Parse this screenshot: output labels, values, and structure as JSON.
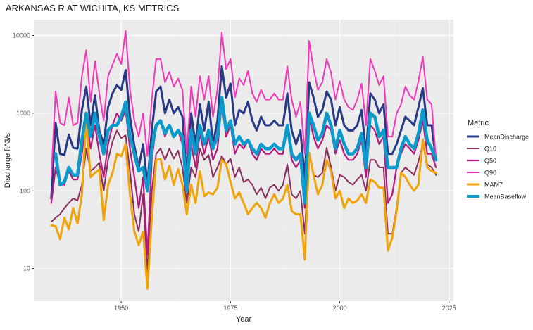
{
  "chart_data": {
    "type": "line",
    "title": "ARKANSAS R AT WICHITA, KS  METRICS",
    "xlabel": "Year",
    "ylabel": "Discharge ft^3/s",
    "y_scale": "log10",
    "xlim": [
      1930,
      2026
    ],
    "ylim": [
      3.8,
      16000
    ],
    "x_ticks": [
      1950,
      1975,
      2000,
      2025
    ],
    "y_ticks": [
      10,
      100,
      1000,
      10000
    ],
    "grid": true,
    "legend_title": "Metric",
    "legend_position": "right",
    "x": [
      1934,
      1935,
      1936,
      1937,
      1938,
      1939,
      1940,
      1941,
      1942,
      1943,
      1944,
      1945,
      1946,
      1947,
      1948,
      1949,
      1950,
      1951,
      1952,
      1953,
      1954,
      1955,
      1956,
      1957,
      1958,
      1959,
      1960,
      1961,
      1962,
      1963,
      1964,
      1965,
      1966,
      1967,
      1968,
      1969,
      1970,
      1971,
      1972,
      1973,
      1974,
      1975,
      1976,
      1977,
      1978,
      1979,
      1980,
      1981,
      1982,
      1983,
      1984,
      1985,
      1986,
      1987,
      1988,
      1989,
      1990,
      1991,
      1992,
      1993,
      1994,
      1995,
      1996,
      1997,
      1998,
      1999,
      2000,
      2001,
      2002,
      2003,
      2004,
      2005,
      2006,
      2007,
      2008,
      2009,
      2010,
      2011,
      2012,
      2013,
      2014,
      2015,
      2016,
      2017,
      2018,
      2019,
      2020,
      2021,
      2022
    ],
    "series": [
      {
        "name": "MeanDischarge",
        "color": "#283a86",
        "width": 3,
        "values": [
          80,
          750,
          300,
          290,
          530,
          360,
          350,
          1100,
          2200,
          700,
          1700,
          600,
          400,
          1200,
          1800,
          2300,
          2000,
          3600,
          900,
          380,
          200,
          400,
          120,
          600,
          1900,
          2200,
          1000,
          1500,
          1000,
          1200,
          900,
          150,
          1000,
          400,
          1300,
          600,
          1400,
          400,
          800,
          4000,
          1600,
          2400,
          700,
          1100,
          1000,
          1400,
          800,
          600,
          900,
          700,
          700,
          800,
          700,
          700,
          1800,
          600,
          400,
          600,
          140,
          2500,
          1600,
          900,
          1100,
          1900,
          1500,
          700,
          1200,
          700,
          600,
          600,
          700,
          1100,
          300,
          1800,
          1500,
          1000,
          1300,
          300,
          300,
          400,
          600,
          900,
          800,
          700,
          1200,
          2100,
          700,
          700,
          250
        ]
      },
      {
        "name": "Q10",
        "color": "#8b2e5f",
        "width": 2,
        "values": [
          40,
          45,
          50,
          60,
          70,
          80,
          75,
          120,
          350,
          180,
          200,
          230,
          100,
          250,
          430,
          600,
          480,
          520,
          180,
          50,
          30,
          90,
          9,
          100,
          300,
          350,
          250,
          350,
          260,
          330,
          200,
          70,
          200,
          150,
          350,
          250,
          290,
          150,
          200,
          280,
          220,
          260,
          150,
          200,
          130,
          140,
          120,
          90,
          110,
          80,
          110,
          120,
          100,
          120,
          220,
          90,
          80,
          100,
          28,
          300,
          160,
          150,
          170,
          360,
          200,
          100,
          160,
          150,
          130,
          120,
          140,
          160,
          100,
          250,
          250,
          200,
          200,
          28,
          28,
          60,
          170,
          200,
          180,
          160,
          240,
          400,
          220,
          200,
          160
        ]
      },
      {
        "name": "Q50",
        "color": "#b5197d",
        "width": 2.2,
        "values": [
          70,
          200,
          120,
          120,
          180,
          140,
          140,
          300,
          900,
          350,
          700,
          300,
          150,
          400,
          700,
          1000,
          800,
          1100,
          350,
          150,
          60,
          150,
          15,
          250,
          700,
          800,
          500,
          700,
          500,
          600,
          400,
          100,
          400,
          200,
          550,
          300,
          500,
          250,
          350,
          1300,
          500,
          700,
          300,
          400,
          350,
          450,
          300,
          250,
          350,
          300,
          300,
          350,
          300,
          300,
          700,
          250,
          200,
          250,
          60,
          900,
          500,
          350,
          450,
          700,
          600,
          300,
          450,
          300,
          250,
          250,
          300,
          450,
          150,
          700,
          600,
          400,
          500,
          70,
          90,
          200,
          300,
          400,
          350,
          300,
          450,
          800,
          300,
          300,
          200
        ]
      },
      {
        "name": "Q90",
        "color": "#f536b8",
        "width": 2,
        "values": [
          150,
          1900,
          750,
          700,
          1600,
          700,
          750,
          3000,
          6500,
          1400,
          4700,
          1800,
          800,
          3000,
          4200,
          5800,
          4300,
          11500,
          2000,
          800,
          500,
          1000,
          280,
          1500,
          5000,
          5000,
          2500,
          3400,
          2200,
          2800,
          2000,
          300,
          2200,
          900,
          3000,
          1500,
          3000,
          900,
          2000,
          11000,
          3700,
          5000,
          1600,
          2800,
          2300,
          3500,
          1800,
          1400,
          2000,
          1500,
          1500,
          1800,
          1500,
          1500,
          4000,
          1500,
          900,
          1400,
          300,
          8500,
          3700,
          2000,
          2500,
          5000,
          3300,
          1500,
          2600,
          1500,
          1200,
          1100,
          1500,
          2400,
          700,
          5000,
          3500,
          2300,
          3000,
          500,
          500,
          1000,
          1300,
          2200,
          1700,
          1500,
          2600,
          5300,
          1500,
          1300,
          250
        ]
      },
      {
        "name": "MAM7",
        "color": "#f0a30a",
        "width": 3,
        "values": [
          36,
          35,
          24,
          45,
          32,
          60,
          38,
          90,
          800,
          150,
          170,
          190,
          42,
          120,
          170,
          300,
          280,
          400,
          90,
          30,
          20,
          30,
          5.5,
          45,
          250,
          260,
          140,
          210,
          120,
          190,
          120,
          50,
          120,
          70,
          180,
          85,
          95,
          90,
          110,
          250,
          220,
          130,
          80,
          95,
          70,
          50,
          60,
          70,
          60,
          45,
          70,
          90,
          70,
          80,
          120,
          55,
          50,
          50,
          13,
          310,
          160,
          90,
          120,
          250,
          180,
          80,
          100,
          60,
          80,
          70,
          75,
          90,
          70,
          140,
          130,
          110,
          110,
          17,
          25,
          55,
          170,
          150,
          120,
          100,
          120,
          460,
          200,
          180,
          170
        ]
      },
      {
        "name": "MeanBaseflow",
        "color": "#0a9bcc",
        "width": 4.5,
        "values": [
          null,
          300,
          120,
          130,
          200,
          160,
          160,
          450,
          1000,
          500,
          1000,
          500,
          300,
          600,
          700,
          700,
          900,
          1400,
          500,
          300,
          180,
          200,
          100,
          350,
          700,
          800,
          550,
          700,
          500,
          600,
          500,
          100,
          600,
          300,
          700,
          400,
          600,
          350,
          500,
          1600,
          600,
          800,
          400,
          500,
          400,
          450,
          350,
          300,
          400,
          350,
          350,
          400,
          350,
          350,
          700,
          300,
          250,
          300,
          70,
          1000,
          700,
          450,
          550,
          1000,
          700,
          350,
          600,
          400,
          300,
          300,
          350,
          550,
          200,
          1000,
          900,
          500,
          600,
          200,
          200,
          200,
          350,
          500,
          400,
          350,
          550,
          1100,
          450,
          350,
          250
        ]
      }
    ]
  }
}
